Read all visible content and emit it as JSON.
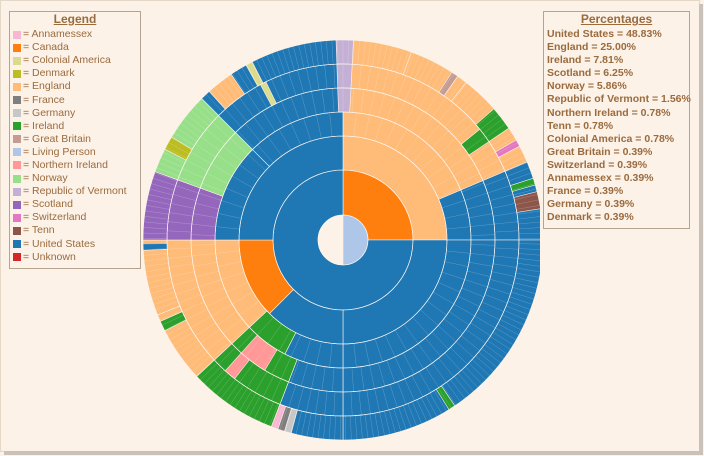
{
  "legend": {
    "title": "Legend",
    "items": [
      {
        "label": "= Annamessex",
        "color": "#f7b6d2"
      },
      {
        "label": "= Canada",
        "color": "#ff7f0e"
      },
      {
        "label": "= Colonial America",
        "color": "#dbdb8d"
      },
      {
        "label": "= Denmark",
        "color": "#bcbd22"
      },
      {
        "label": "= England",
        "color": "#ffbb78"
      },
      {
        "label": "= France",
        "color": "#7f7f7f"
      },
      {
        "label": "= Germany",
        "color": "#c7c7c7"
      },
      {
        "label": "= Ireland",
        "color": "#2ca02c"
      },
      {
        "label": "= Great Britain",
        "color": "#c49c94"
      },
      {
        "label": "= Living Person",
        "color": "#aec7e8"
      },
      {
        "label": "= Northern Ireland",
        "color": "#ff9896"
      },
      {
        "label": "= Norway",
        "color": "#98df8a"
      },
      {
        "label": "= Republic of Vermont",
        "color": "#c5b0d5"
      },
      {
        "label": "= Scotland",
        "color": "#9467bd"
      },
      {
        "label": "= Switzerland",
        "color": "#e377c2"
      },
      {
        "label": "= Tenn",
        "color": "#8c564b"
      },
      {
        "label": "= United States",
        "color": "#1f77b4"
      },
      {
        "label": "= Unknown",
        "color": "#d62728"
      }
    ]
  },
  "percentages": {
    "title": "Percentages",
    "items": [
      "United States = 48.83%",
      "England = 25.00%",
      "Ireland = 7.81%",
      "Scotland = 6.25%",
      "Norway = 5.86%",
      "Republic of Vermont = 1.56%",
      "Northern Ireland = 0.78%",
      "Tenn = 0.78%",
      "Colonial America = 0.78%",
      "Great Britain = 0.39%",
      "Switzerland = 0.39%",
      "Annamessex = 0.39%",
      "France = 0.39%",
      "Germany = 0.39%",
      "Denmark = 0.39%"
    ]
  },
  "chart_data": {
    "type": "sunburst",
    "center_color": "#aec7e8",
    "series": [
      {
        "name": "United States",
        "value": 48.83,
        "color": "#1f77b4"
      },
      {
        "name": "England",
        "value": 25.0,
        "color": "#ffbb78"
      },
      {
        "name": "Ireland",
        "value": 7.81,
        "color": "#2ca02c"
      },
      {
        "name": "Scotland",
        "value": 6.25,
        "color": "#9467bd"
      },
      {
        "name": "Norway",
        "value": 5.86,
        "color": "#98df8a"
      },
      {
        "name": "Republic of Vermont",
        "value": 1.56,
        "color": "#c5b0d5"
      },
      {
        "name": "Northern Ireland",
        "value": 0.78,
        "color": "#ff9896"
      },
      {
        "name": "Tenn",
        "value": 0.78,
        "color": "#8c564b"
      },
      {
        "name": "Colonial America",
        "value": 0.78,
        "color": "#dbdb8d"
      },
      {
        "name": "Great Britain",
        "value": 0.39,
        "color": "#c49c94"
      },
      {
        "name": "Switzerland",
        "value": 0.39,
        "color": "#e377c2"
      },
      {
        "name": "Annamessex",
        "value": 0.39,
        "color": "#f7b6d2"
      },
      {
        "name": "France",
        "value": 0.39,
        "color": "#7f7f7f"
      },
      {
        "name": "Germany",
        "value": 0.39,
        "color": "#c7c7c7"
      },
      {
        "name": "Denmark",
        "value": 0.39,
        "color": "#bcbd22"
      }
    ],
    "segments": [
      {
        "ring": 0,
        "start": 0,
        "end": 180,
        "color": "#aec7e8"
      },
      {
        "ring": 1,
        "start": 0,
        "end": 90,
        "color": "#ff7f0e"
      },
      {
        "ring": 1,
        "start": 90,
        "end": 360,
        "color": "#1f77b4"
      },
      {
        "ring": 2,
        "start": 0,
        "end": 90,
        "color": "#ffbb78"
      },
      {
        "ring": 2,
        "start": 90,
        "end": 180,
        "color": "#1f77b4"
      },
      {
        "ring": 2,
        "start": 180,
        "end": 225,
        "color": "#1f77b4"
      },
      {
        "ring": 2,
        "start": 225,
        "end": 270,
        "color": "#ff7f0e"
      },
      {
        "ring": 2,
        "start": 270,
        "end": 360,
        "color": "#1f77b4"
      },
      {
        "ring": 3,
        "start": 0,
        "end": 67,
        "color": "#ffbb78"
      },
      {
        "ring": 3,
        "start": 67,
        "end": 90,
        "color": "#1f77b4"
      },
      {
        "ring": 3,
        "start": 90,
        "end": 180,
        "color": "#1f77b4"
      },
      {
        "ring": 3,
        "start": 180,
        "end": 207,
        "color": "#1f77b4"
      },
      {
        "ring": 3,
        "start": 207,
        "end": 227,
        "color": "#2ca02c"
      },
      {
        "ring": 3,
        "start": 227,
        "end": 270,
        "color": "#ffbb78"
      },
      {
        "ring": 3,
        "start": 270,
        "end": 315,
        "color": "#1f77b4"
      },
      {
        "ring": 3,
        "start": 315,
        "end": 360,
        "color": "#1f77b4"
      },
      {
        "ring": 4,
        "start": 0,
        "end": 67,
        "color": "#ffbb78"
      },
      {
        "ring": 4,
        "start": 67,
        "end": 90,
        "color": "#1f77b4"
      },
      {
        "ring": 4,
        "start": 90,
        "end": 180,
        "color": "#1f77b4"
      },
      {
        "ring": 4,
        "start": 180,
        "end": 201,
        "color": "#1f77b4"
      },
      {
        "ring": 4,
        "start": 201,
        "end": 227,
        "color": "#2ca02c"
      },
      {
        "ring": 4,
        "start": 227,
        "end": 270,
        "color": "#ffbb78"
      },
      {
        "ring": 4,
        "start": 270,
        "end": 290,
        "color": "#9467bd"
      },
      {
        "ring": 4,
        "start": 290,
        "end": 315,
        "color": "#98df8a"
      },
      {
        "ring": 4,
        "start": 315,
        "end": 360,
        "color": "#1f77b4"
      },
      {
        "ring": 5,
        "start": 0,
        "end": 67,
        "color": "#ffbb78"
      },
      {
        "ring": 5,
        "start": 67,
        "end": 90,
        "color": "#1f77b4"
      },
      {
        "ring": 5,
        "start": 90,
        "end": 180,
        "color": "#1f77b4"
      },
      {
        "ring": 5,
        "start": 180,
        "end": 201,
        "color": "#1f77b4"
      },
      {
        "ring": 5,
        "start": 201,
        "end": 227,
        "color": "#2ca02c"
      },
      {
        "ring": 5,
        "start": 227,
        "end": 270,
        "color": "#ffbb78"
      },
      {
        "ring": 5,
        "start": 270,
        "end": 290,
        "color": "#9467bd"
      },
      {
        "ring": 5,
        "start": 290,
        "end": 315,
        "color": "#98df8a"
      },
      {
        "ring": 5,
        "start": 315,
        "end": 360,
        "color": "#1f77b4"
      },
      {
        "ring": 6,
        "start": 0,
        "end": 67,
        "color": "#ffbb78"
      },
      {
        "ring": 6,
        "start": 67,
        "end": 90,
        "color": "#1f77b4"
      },
      {
        "ring": 6,
        "start": 90,
        "end": 180,
        "color": "#1f77b4"
      },
      {
        "ring": 6,
        "start": 180,
        "end": 201,
        "color": "#1f77b4"
      },
      {
        "ring": 6,
        "start": 201,
        "end": 227,
        "color": "#2ca02c"
      },
      {
        "ring": 6,
        "start": 227,
        "end": 270,
        "color": "#ffbb78"
      },
      {
        "ring": 6,
        "start": 270,
        "end": 290,
        "color": "#9467bd"
      },
      {
        "ring": 6,
        "start": 290,
        "end": 315,
        "color": "#98df8a"
      },
      {
        "ring": 6,
        "start": 315,
        "end": 360,
        "color": "#1f77b4"
      },
      {
        "ring": 6,
        "start": 20,
        "end": 38,
        "color": "#ffbb78"
      },
      {
        "ring": 6,
        "start": 38,
        "end": 67,
        "color": "#ffbb78"
      }
    ],
    "accents": [
      {
        "ring": 4,
        "start": 211,
        "end": 222,
        "color": "#ff9896"
      },
      {
        "ring": 5,
        "start": 218,
        "end": 222,
        "color": "#ff9896"
      },
      {
        "ring": 5,
        "start": 332,
        "end": 334,
        "color": "#dbdb8d"
      },
      {
        "ring": 6,
        "start": 331,
        "end": 333,
        "color": "#dbdb8d"
      },
      {
        "ring": 6,
        "start": 358,
        "end": 3,
        "color": "#c5b0d5"
      },
      {
        "ring": 5,
        "start": 358,
        "end": 3,
        "color": "#c5b0d5"
      },
      {
        "ring": 4,
        "start": 358,
        "end": 3,
        "color": "#c5b0d5"
      },
      {
        "ring": 6,
        "start": 33,
        "end": 35,
        "color": "#c49c94"
      },
      {
        "ring": 6,
        "start": 49,
        "end": 56,
        "color": "#2ca02c"
      },
      {
        "ring": 5,
        "start": 51,
        "end": 56,
        "color": "#2ca02c"
      },
      {
        "ring": 6,
        "start": 60,
        "end": 62,
        "color": "#e377c2"
      },
      {
        "ring": 6,
        "start": 72,
        "end": 74,
        "color": "#2ca02c"
      },
      {
        "ring": 6,
        "start": 76,
        "end": 81,
        "color": "#8c564b"
      },
      {
        "ring": 6,
        "start": 318,
        "end": 326,
        "color": "#ffbb78"
      },
      {
        "ring": 6,
        "start": 297,
        "end": 301,
        "color": "#bcbd22"
      },
      {
        "ring": 6,
        "start": 267,
        "end": 269,
        "color": "#1f77b4"
      },
      {
        "ring": 6,
        "start": 243,
        "end": 246,
        "color": "#2ca02c"
      },
      {
        "ring": 6,
        "start": 246,
        "end": 248,
        "color": "#ffbb78"
      },
      {
        "ring": 6,
        "start": 199,
        "end": 201,
        "color": "#f7b6d2"
      },
      {
        "ring": 6,
        "start": 197,
        "end": 199,
        "color": "#7f7f7f"
      },
      {
        "ring": 6,
        "start": 195,
        "end": 197,
        "color": "#c7c7c7"
      },
      {
        "ring": 6,
        "start": 146,
        "end": 148,
        "color": "#2ca02c"
      }
    ]
  }
}
